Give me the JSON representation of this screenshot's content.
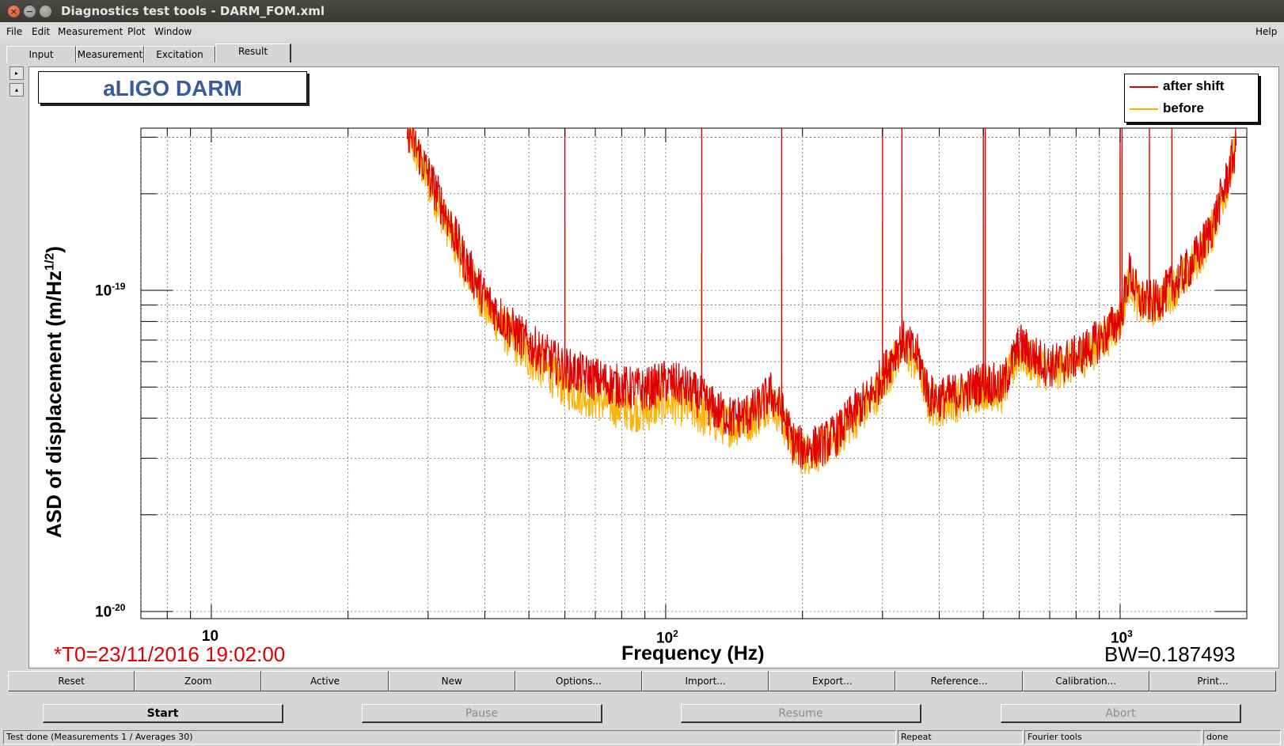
{
  "window": {
    "title": "Diagnostics test tools - DARM_FOM.xml"
  },
  "menubar": {
    "file": "File",
    "edit": "Edit",
    "measurement": "Measurement",
    "plot": "Plot",
    "window": "Window",
    "help": "Help"
  },
  "tabs": [
    "Input",
    "Measurement",
    "Excitation",
    "Result"
  ],
  "plot": {
    "pad_title": "aLIGO DARM",
    "t0": "*T0=23/11/2016 19:02:00",
    "bw": "BW=0.187493",
    "ylabel_main": "ASD of displacement (m/Hz",
    "ylabel_sup": "1/2",
    "ylabel_end": ")",
    "xlabel": "Frequency (Hz)"
  },
  "chart_data": {
    "type": "line",
    "title": "aLIGO DARM",
    "xlabel": "Frequency (Hz)",
    "ylabel": "ASD of displacement (m/Hz^1/2)",
    "x_scale": "log",
    "y_scale": "log",
    "xlim": [
      7,
      1900
    ],
    "ylim": [
      9.5e-21,
      3.2e-19
    ],
    "x_ticks": [
      {
        "mant": "10",
        "exp": "",
        "value": 10
      },
      {
        "mant": "10",
        "exp": "2",
        "value": 100
      },
      {
        "mant": "10",
        "exp": "3",
        "value": 1000
      }
    ],
    "y_ticks": [
      {
        "mant": "10",
        "exp": "-19",
        "value": 1e-19
      },
      {
        "mant": "10",
        "exp": "-20",
        "value": 1e-20
      }
    ],
    "grid": true,
    "legend_position": "top-right",
    "series": [
      {
        "name": "after shift",
        "color": "#e00000",
        "x": [
          27,
          30,
          33,
          36,
          40,
          45,
          50,
          55,
          60,
          70,
          80,
          90,
          100,
          110,
          120,
          130,
          140,
          150,
          160,
          170,
          180,
          190,
          200,
          220,
          240,
          260,
          280,
          300,
          330,
          360,
          380,
          400,
          450,
          500,
          550,
          600,
          650,
          700,
          800,
          900,
          1000,
          1050,
          1100,
          1200,
          1300,
          1400,
          1500,
          1600,
          1700,
          1800
        ],
        "y": [
          3.2e-19,
          2.3e-19,
          1.7e-19,
          1.25e-19,
          9.5e-20,
          7.8e-20,
          6.8e-20,
          6.2e-20,
          5.7e-20,
          5.3e-20,
          5e-20,
          4.9e-20,
          5.2e-20,
          5e-20,
          4.6e-20,
          4.2e-20,
          4e-20,
          4.1e-20,
          4.3e-20,
          4.8e-20,
          4.2e-20,
          3.4e-20,
          3.2e-20,
          3.3e-20,
          3.6e-20,
          4.2e-20,
          4.6e-20,
          5.4e-20,
          7e-20,
          6.2e-20,
          4.7e-20,
          4.6e-20,
          4.8e-20,
          5.2e-20,
          5e-20,
          6.8e-20,
          6.2e-20,
          5.8e-20,
          6.2e-20,
          7e-20,
          8.2e-20,
          1.15e-19,
          9.3e-20,
          9.2e-20,
          1.03e-19,
          1.15e-19,
          1.33e-19,
          1.6e-19,
          2.1e-19,
          2.8e-19
        ]
      },
      {
        "name": "before",
        "color": "#ffb000",
        "x": [
          27,
          30,
          33,
          36,
          40,
          45,
          50,
          55,
          60,
          70,
          80,
          90,
          100,
          110,
          120,
          130,
          140,
          150,
          160,
          170,
          180,
          190,
          200,
          220,
          240,
          260,
          280,
          300,
          330,
          360,
          380,
          400,
          450,
          500,
          550,
          600,
          650,
          700,
          800,
          900,
          1000,
          1050,
          1100,
          1200,
          1300,
          1400,
          1500,
          1600,
          1700,
          1800
        ],
        "y": [
          3.1e-19,
          2.2e-19,
          1.6e-19,
          1.2e-19,
          9e-20,
          7.2e-20,
          6.2e-20,
          5.6e-20,
          5e-20,
          4.6e-20,
          4.3e-20,
          4.2e-20,
          4.5e-20,
          4.4e-20,
          4.1e-20,
          3.9e-20,
          3.8e-20,
          3.9e-20,
          4.1e-20,
          4.6e-20,
          4e-20,
          3.3e-20,
          3.1e-20,
          3.2e-20,
          3.5e-20,
          4e-20,
          4.4e-20,
          5.1e-20,
          6.6e-20,
          5.9e-20,
          4.4e-20,
          4.4e-20,
          4.6e-20,
          5e-20,
          4.8e-20,
          6.4e-20,
          5.9e-20,
          5.6e-20,
          6e-20,
          6.8e-20,
          8e-20,
          1.1e-19,
          9e-20,
          9e-20,
          1e-19,
          1.12e-19,
          1.3e-19,
          1.55e-19,
          2.05e-19,
          2.75e-19
        ]
      }
    ],
    "lines_freq": [
      60,
      120,
      180,
      300,
      331,
      500,
      505,
      1000,
      1010,
      1160,
      1300
    ]
  },
  "plot_buttons": [
    "Reset",
    "Zoom",
    "Active",
    "New",
    "Options...",
    "Import...",
    "Export...",
    "Reference...",
    "Calibration...",
    "Print..."
  ],
  "controls": {
    "start": "Start",
    "pause": "Pause",
    "resume": "Resume",
    "abort": "Abort"
  },
  "status": {
    "main": "Test done (Measurements 1 / Averages 30)",
    "repeat": "Repeat",
    "fourier": "Fourier tools",
    "done": "done"
  }
}
